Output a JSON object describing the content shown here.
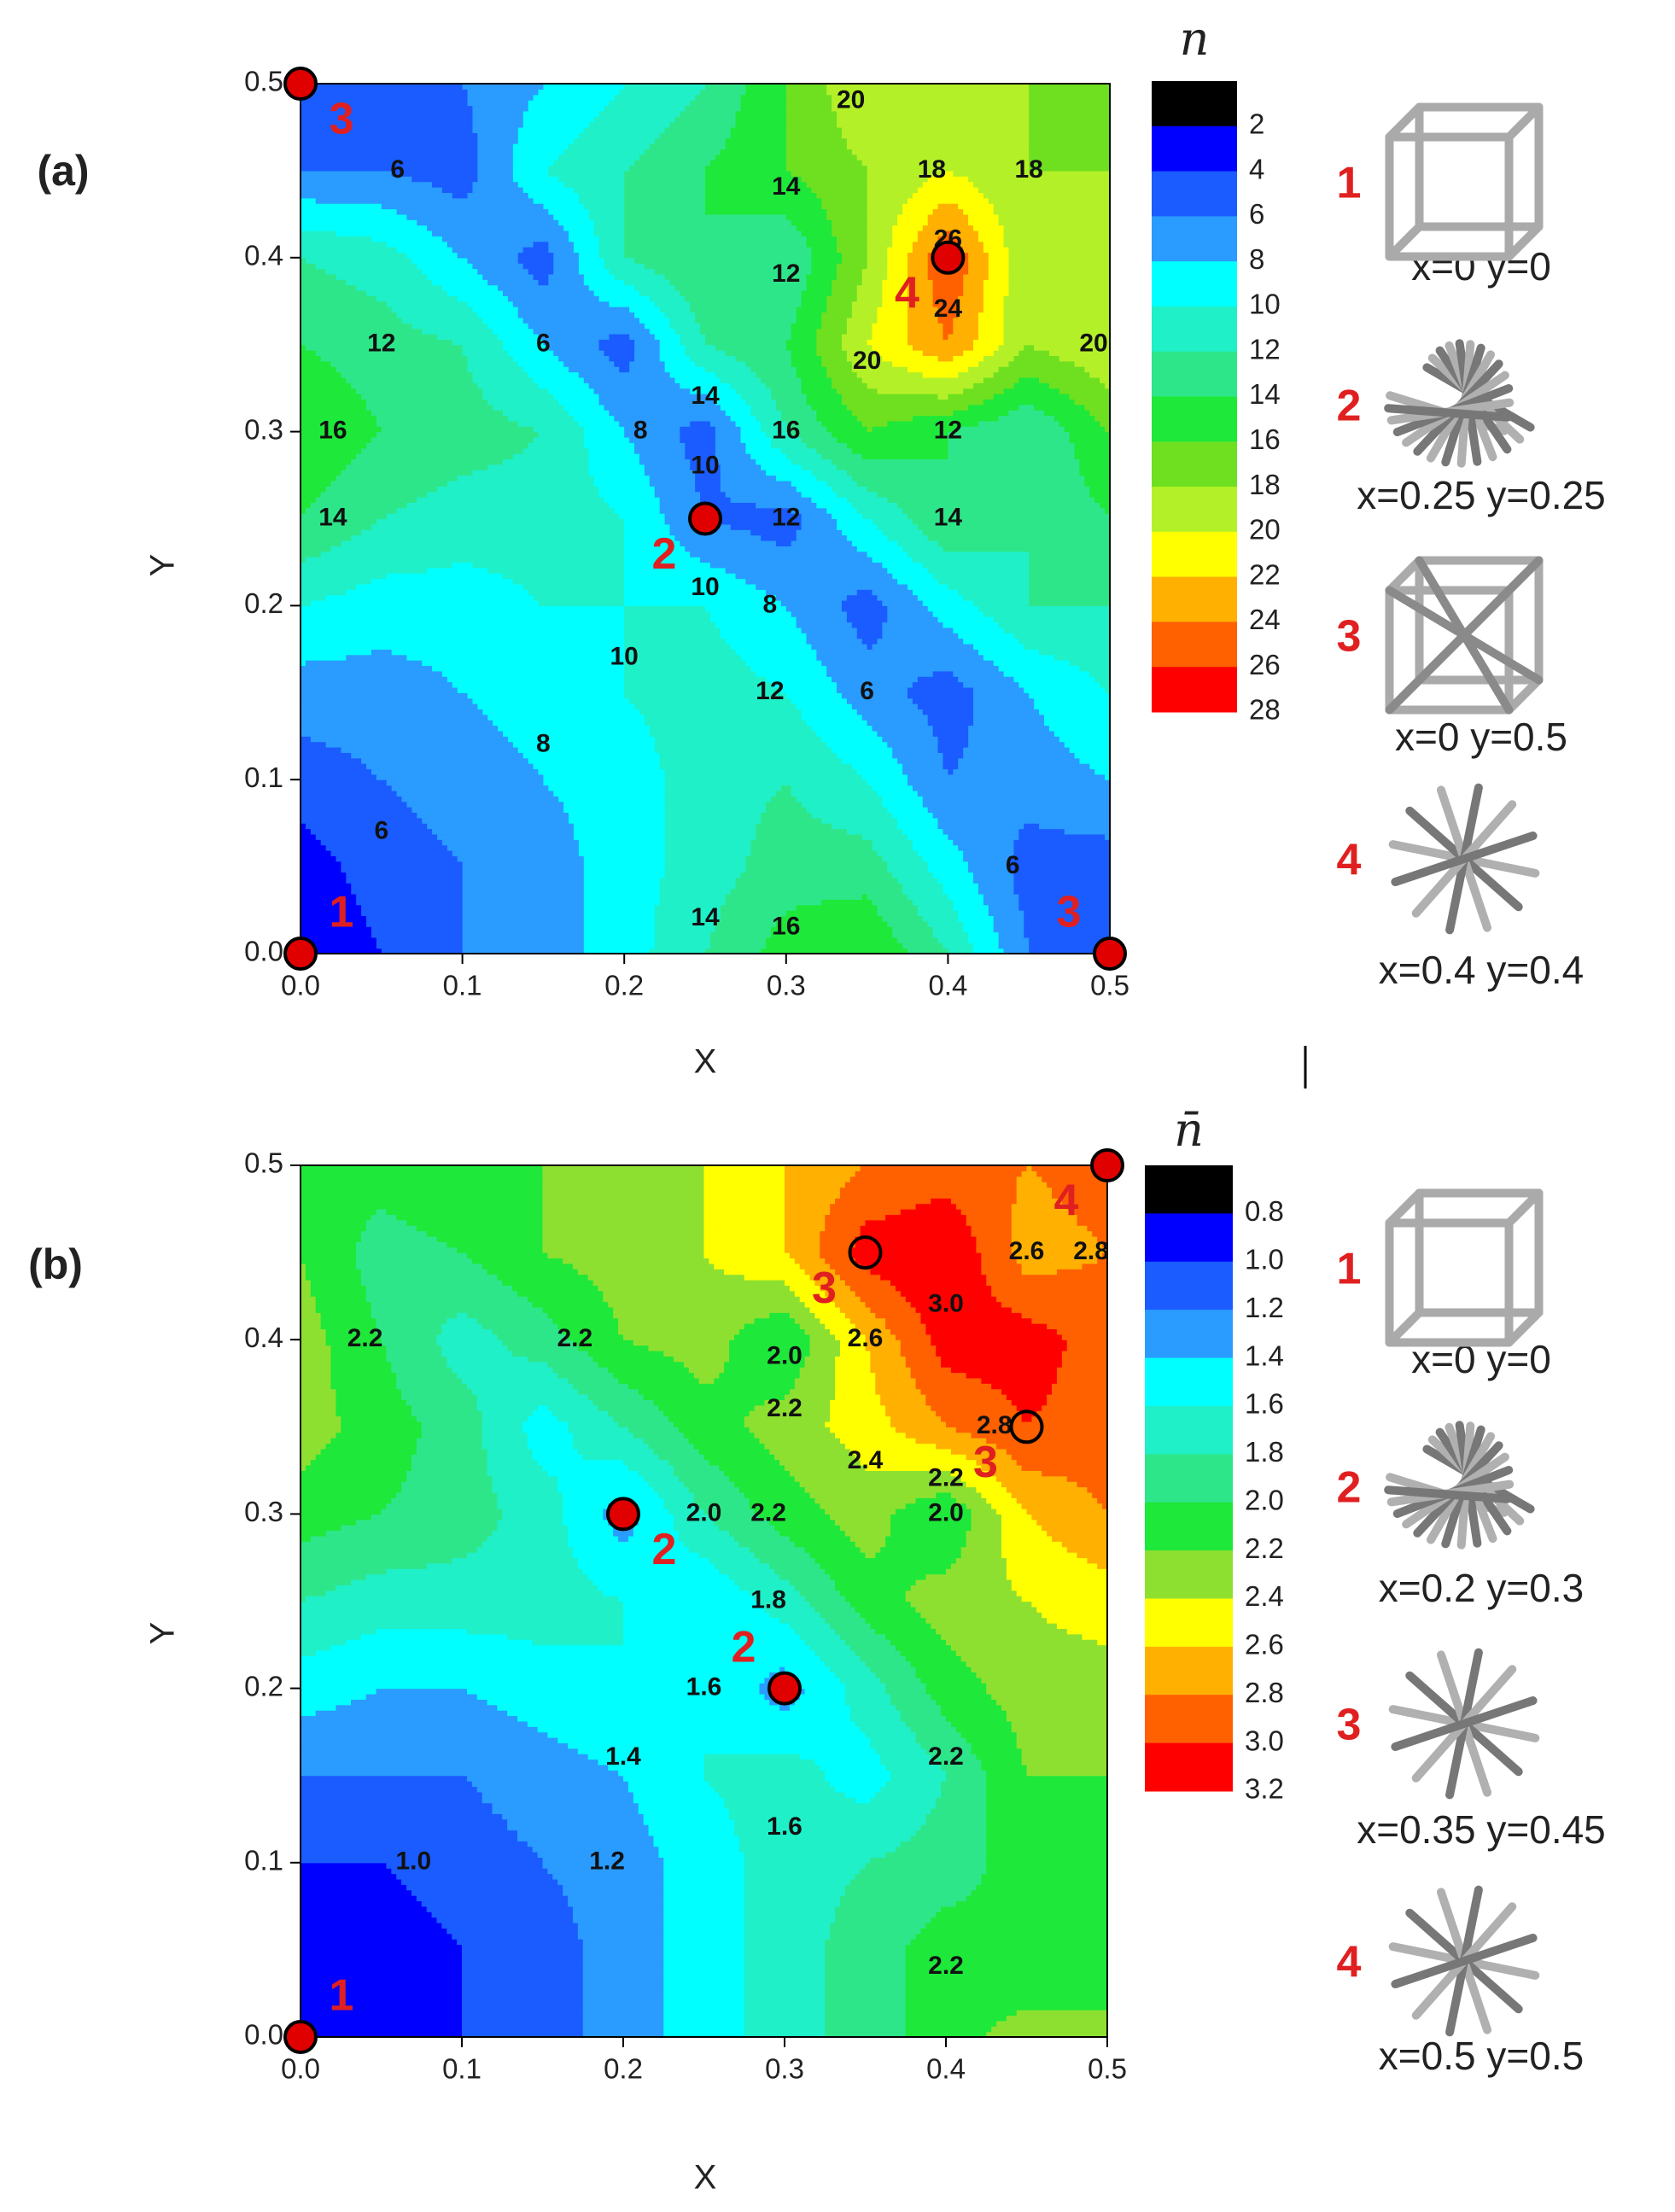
{
  "chart_data": [
    {
      "type": "contour",
      "panel_label": "(a)",
      "xlabel": "X",
      "ylabel": "Y",
      "xlim": [
        0,
        0.5
      ],
      "ylim": [
        0,
        0.5
      ],
      "xticks": [
        {
          "value": 0,
          "label": "0.0"
        },
        0.1,
        0.2,
        0.3,
        0.4,
        0.5
      ],
      "yticks": [
        {
          "value": 0,
          "label": "0.0"
        },
        0.1,
        0.2,
        0.3,
        0.4,
        0.5
      ],
      "x": [
        0,
        0.05,
        0.1,
        0.15,
        0.2,
        0.25,
        0.3,
        0.35,
        0.4,
        0.45,
        0.5
      ],
      "y": [
        0,
        0.05,
        0.1,
        0.15,
        0.2,
        0.25,
        0.3,
        0.35,
        0.4,
        0.45,
        0.5
      ],
      "z": [
        [
          2,
          4,
          6,
          7,
          9,
          12,
          15,
          16,
          12,
          6,
          4
        ],
        [
          3,
          5,
          6,
          7,
          9,
          11,
          13,
          13,
          9,
          5,
          5
        ],
        [
          5,
          6,
          7,
          8,
          9,
          11,
          12,
          10,
          6,
          7,
          8
        ],
        [
          7,
          7,
          8,
          9,
          10,
          11,
          10,
          7,
          5,
          8,
          10
        ],
        [
          10,
          9,
          9,
          10,
          10,
          10,
          8,
          5,
          9,
          12,
          12
        ],
        [
          14,
          12,
          11,
          11,
          10,
          6,
          5,
          10,
          14,
          12,
          14
        ],
        [
          16,
          14,
          13,
          12,
          8,
          5,
          12,
          16,
          14,
          12,
          16
        ],
        [
          14,
          13,
          12,
          8,
          5,
          12,
          14,
          20,
          24,
          18,
          20
        ],
        [
          12,
          11,
          8,
          5,
          12,
          14,
          12,
          18,
          26,
          18,
          20
        ],
        [
          6,
          6,
          5,
          10,
          12,
          14,
          16,
          18,
          20,
          18,
          18
        ],
        [
          4,
          4,
          6,
          8,
          10,
          12,
          16,
          20,
          20,
          18,
          16
        ]
      ],
      "colorbar": {
        "title": "n",
        "levels": [
          2,
          4,
          6,
          8,
          10,
          12,
          14,
          16,
          18,
          20,
          22,
          24,
          26,
          28
        ],
        "colors": [
          "#000000",
          "#0000ff",
          "#1a5cff",
          "#2a9bff",
          "#00ffff",
          "#1ff0c8",
          "#2ee68a",
          "#1ee83a",
          "#6ee020",
          "#b4f028",
          "#ffff00",
          "#ffb000",
          "#ff6000",
          "#ff0000"
        ]
      },
      "contour_labels": [
        {
          "x": 0.3,
          "y": 0.44,
          "value": 14
        },
        {
          "x": 0.39,
          "y": 0.45,
          "value": 18
        },
        {
          "x": 0.45,
          "y": 0.45,
          "value": 18
        },
        {
          "x": 0.3,
          "y": 0.39,
          "value": 12
        },
        {
          "x": 0.4,
          "y": 0.41,
          "value": 26
        },
        {
          "x": 0.4,
          "y": 0.37,
          "value": 24
        },
        {
          "x": 0.35,
          "y": 0.34,
          "value": 20
        },
        {
          "x": 0.49,
          "y": 0.35,
          "value": 20
        },
        {
          "x": 0.34,
          "y": 0.49,
          "value": 20
        },
        {
          "x": 0.06,
          "y": 0.45,
          "value": 6
        },
        {
          "x": 0.05,
          "y": 0.35,
          "value": 12
        },
        {
          "x": 0.15,
          "y": 0.35,
          "value": 6
        },
        {
          "x": 0.02,
          "y": 0.3,
          "value": 16
        },
        {
          "x": 0.25,
          "y": 0.32,
          "value": 14
        },
        {
          "x": 0.21,
          "y": 0.3,
          "value": 8
        },
        {
          "x": 0.25,
          "y": 0.28,
          "value": 10
        },
        {
          "x": 0.3,
          "y": 0.3,
          "value": 16
        },
        {
          "x": 0.3,
          "y": 0.25,
          "value": 12
        },
        {
          "x": 0.02,
          "y": 0.25,
          "value": 14
        },
        {
          "x": 0.4,
          "y": 0.3,
          "value": 12
        },
        {
          "x": 0.4,
          "y": 0.25,
          "value": 14
        },
        {
          "x": 0.25,
          "y": 0.21,
          "value": 10
        },
        {
          "x": 0.29,
          "y": 0.2,
          "value": 8
        },
        {
          "x": 0.2,
          "y": 0.17,
          "value": 10
        },
        {
          "x": 0.29,
          "y": 0.15,
          "value": 12
        },
        {
          "x": 0.35,
          "y": 0.15,
          "value": 6
        },
        {
          "x": 0.15,
          "y": 0.12,
          "value": 8
        },
        {
          "x": 0.05,
          "y": 0.07,
          "value": 6
        },
        {
          "x": 0.44,
          "y": 0.05,
          "value": 6
        },
        {
          "x": 0.25,
          "y": 0.02,
          "value": 14
        },
        {
          "x": 0.3,
          "y": 0.015,
          "value": 16
        }
      ],
      "marker_color": "#e00000",
      "points": [
        {
          "x": 0,
          "y": 0,
          "label": "1",
          "style": "filled"
        },
        {
          "x": 0.25,
          "y": 0.25,
          "label": "2",
          "style": "filled"
        },
        {
          "x": 0,
          "y": 0.5,
          "label": "3",
          "style": "filled"
        },
        {
          "x": 0.5,
          "y": 0,
          "label": "3",
          "style": "filled"
        },
        {
          "x": 0.4,
          "y": 0.4,
          "label": "4",
          "style": "filled"
        }
      ],
      "structures": [
        {
          "label": "1",
          "caption": "x=0 y=0"
        },
        {
          "label": "2",
          "caption": "x=0.25 y=0.25"
        },
        {
          "label": "3",
          "caption": "x=0 y=0.5"
        },
        {
          "label": "4",
          "caption": "x=0.4 y=0.4"
        }
      ]
    },
    {
      "type": "contour",
      "panel_label": "(b)",
      "xlabel": "X",
      "ylabel": "Y",
      "xlim": [
        0,
        0.5
      ],
      "ylim": [
        0,
        0.5
      ],
      "xticks": [
        {
          "value": 0,
          "label": "0.0"
        },
        0.1,
        0.2,
        0.3,
        0.4,
        0.5
      ],
      "yticks": [
        {
          "value": 0,
          "label": "0.0"
        },
        0.1,
        0.2,
        0.3,
        0.4,
        0.5
      ],
      "x": [
        0,
        0.05,
        0.1,
        0.15,
        0.2,
        0.25,
        0.3,
        0.35,
        0.4,
        0.45,
        0.5
      ],
      "y": [
        0,
        0.05,
        0.1,
        0.15,
        0.2,
        0.25,
        0.3,
        0.35,
        0.4,
        0.45,
        0.5
      ],
      "z": [
        [
          0.9,
          0.9,
          1.0,
          1.1,
          1.3,
          1.5,
          1.7,
          1.9,
          2.1,
          2.3,
          2.2
        ],
        [
          0.9,
          0.9,
          1.0,
          1.1,
          1.3,
          1.5,
          1.7,
          1.9,
          2.1,
          2.0,
          2.2
        ],
        [
          1.0,
          1.0,
          1.1,
          1.2,
          1.3,
          1.5,
          1.7,
          1.8,
          1.9,
          2.1,
          2.2
        ],
        [
          1.2,
          1.2,
          1.2,
          1.3,
          1.4,
          1.6,
          1.7,
          1.5,
          1.8,
          2.2,
          2.2
        ],
        [
          1.5,
          1.4,
          1.4,
          1.5,
          1.6,
          1.6,
          1.3,
          1.7,
          2.1,
          2.3,
          2.3
        ],
        [
          1.8,
          1.7,
          1.7,
          1.7,
          1.6,
          1.4,
          1.7,
          2.1,
          2.3,
          2.4,
          2.5
        ],
        [
          2.1,
          2.0,
          1.9,
          1.7,
          1.3,
          1.8,
          2.1,
          2.3,
          2.0,
          2.6,
          2.8
        ],
        [
          2.3,
          2.1,
          1.9,
          1.5,
          1.8,
          2.1,
          2.3,
          2.5,
          2.8,
          3.0,
          2.9
        ],
        [
          2.3,
          2.0,
          1.7,
          1.9,
          2.2,
          2.3,
          2.0,
          2.6,
          3.1,
          3.1,
          2.9
        ],
        [
          2.2,
          1.9,
          2.0,
          2.2,
          2.3,
          2.4,
          2.6,
          3.1,
          3.2,
          2.7,
          2.8
        ],
        [
          2.1,
          2.1,
          2.2,
          2.2,
          2.3,
          2.4,
          2.6,
          2.8,
          2.9,
          2.8,
          2.9
        ]
      ],
      "colorbar": {
        "title": "n̄",
        "levels": [
          0.8,
          {
            "value": 1,
            "label": "1.0"
          },
          1.2,
          1.4,
          1.6,
          1.8,
          {
            "value": 2,
            "label": "2.0"
          },
          2.2,
          2.4,
          2.6,
          2.8,
          {
            "value": 3,
            "label": "3.0"
          },
          3.2
        ],
        "colors": [
          "#000000",
          "#0000ff",
          "#1a5cff",
          "#2a9bff",
          "#00ffff",
          "#1ff0c8",
          "#2ee68a",
          "#1ee83a",
          "#8ee030",
          "#ffff00",
          "#ffb000",
          "#ff6000",
          "#ff0000"
        ]
      },
      "contour_labels": [
        {
          "x": 0.04,
          "y": 0.4,
          "value": 2.2
        },
        {
          "x": 0.17,
          "y": 0.4,
          "value": 2.2
        },
        {
          "x": 0.3,
          "y": 0.39,
          "value": 2,
          "label": "2.0"
        },
        {
          "x": 0.3,
          "y": 0.36,
          "value": 2.2
        },
        {
          "x": 0.35,
          "y": 0.4,
          "value": 2.6
        },
        {
          "x": 0.4,
          "y": 0.42,
          "value": 3,
          "label": "3.0"
        },
        {
          "x": 0.45,
          "y": 0.45,
          "value": 2.6
        },
        {
          "x": 0.49,
          "y": 0.45,
          "value": 2.8
        },
        {
          "x": 0.43,
          "y": 0.35,
          "value": 2.8
        },
        {
          "x": 0.35,
          "y": 0.33,
          "value": 2.4
        },
        {
          "x": 0.4,
          "y": 0.32,
          "value": 2.2
        },
        {
          "x": 0.4,
          "y": 0.3,
          "value": 2,
          "label": "2.0"
        },
        {
          "x": 0.25,
          "y": 0.3,
          "value": 2,
          "label": "2.0"
        },
        {
          "x": 0.29,
          "y": 0.3,
          "value": 2.2
        },
        {
          "x": 0.29,
          "y": 0.25,
          "value": 1.8
        },
        {
          "x": 0.25,
          "y": 0.2,
          "value": 1.6
        },
        {
          "x": 0.2,
          "y": 0.16,
          "value": 1.4
        },
        {
          "x": 0.4,
          "y": 0.16,
          "value": 2.2
        },
        {
          "x": 0.3,
          "y": 0.12,
          "value": 1.6
        },
        {
          "x": 0.19,
          "y": 0.1,
          "value": 1.2
        },
        {
          "x": 0.07,
          "y": 0.1,
          "value": 1,
          "label": "1.0"
        },
        {
          "x": 0.4,
          "y": 0.04,
          "value": 2.2
        }
      ],
      "marker_color": "#e00000",
      "points": [
        {
          "x": 0,
          "y": 0,
          "label": "1",
          "style": "filled"
        },
        {
          "x": 0.2,
          "y": 0.3,
          "label": "2",
          "style": "filled"
        },
        {
          "x": 0.3,
          "y": 0.2,
          "label": "2",
          "style": "filled"
        },
        {
          "x": 0.35,
          "y": 0.45,
          "label": "3",
          "style": "open"
        },
        {
          "x": 0.45,
          "y": 0.35,
          "label": "3",
          "style": "open"
        },
        {
          "x": 0.5,
          "y": 0.5,
          "label": "4",
          "style": "filled"
        }
      ],
      "structures": [
        {
          "label": "1",
          "caption": "x=0 y=0"
        },
        {
          "label": "2",
          "caption": "x=0.2 y=0.3"
        },
        {
          "label": "3",
          "caption": "x=0.35 y=0.45"
        },
        {
          "label": "4",
          "caption": "x=0.5 y=0.5"
        }
      ]
    }
  ]
}
